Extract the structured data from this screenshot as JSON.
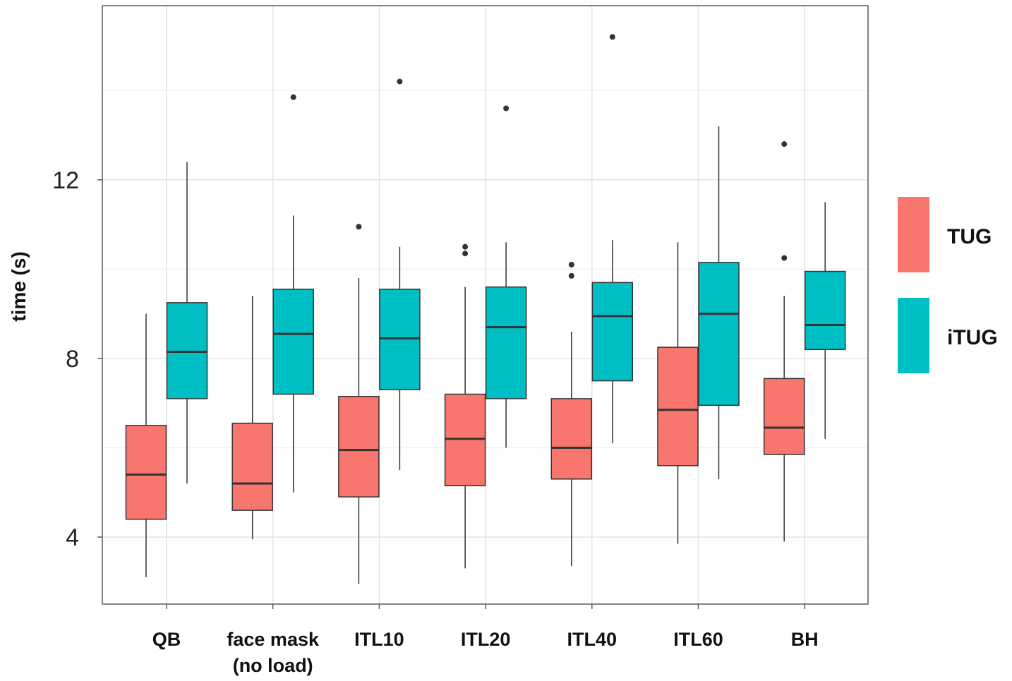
{
  "chart_data": {
    "type": "box",
    "title": "",
    "xlabel": "",
    "ylabel": "time (s)",
    "ylim": [
      2.5,
      15.9
    ],
    "yticks": [
      4,
      8,
      12
    ],
    "grid": true,
    "legend_position": "right",
    "categories": [
      "QB",
      "face mask\n(no load)",
      "ITL10",
      "ITL20",
      "ITL40",
      "ITL60",
      "BH"
    ],
    "series": [
      {
        "name": "TUG",
        "color": "#F8766D",
        "boxes": [
          {
            "whisker_low": 3.1,
            "q1": 4.4,
            "median": 5.4,
            "q3": 6.5,
            "whisker_high": 9.0,
            "outliers": []
          },
          {
            "whisker_low": 3.95,
            "q1": 4.6,
            "median": 5.2,
            "q3": 6.55,
            "whisker_high": 9.4,
            "outliers": []
          },
          {
            "whisker_low": 2.95,
            "q1": 4.9,
            "median": 5.95,
            "q3": 7.15,
            "whisker_high": 9.8,
            "outliers": [
              10.95
            ]
          },
          {
            "whisker_low": 3.3,
            "q1": 5.15,
            "median": 6.2,
            "q3": 7.2,
            "whisker_high": 9.6,
            "outliers": [
              10.35,
              10.5
            ]
          },
          {
            "whisker_low": 3.35,
            "q1": 5.3,
            "median": 6.0,
            "q3": 7.1,
            "whisker_high": 8.6,
            "outliers": [
              9.85,
              10.1
            ]
          },
          {
            "whisker_low": 3.85,
            "q1": 5.6,
            "median": 6.85,
            "q3": 8.25,
            "whisker_high": 10.6,
            "outliers": []
          },
          {
            "whisker_low": 3.9,
            "q1": 5.85,
            "median": 6.45,
            "q3": 7.55,
            "whisker_high": 9.4,
            "outliers": [
              10.25,
              12.8
            ]
          }
        ]
      },
      {
        "name": "iTUG",
        "color": "#00BFC4",
        "boxes": [
          {
            "whisker_low": 5.2,
            "q1": 7.1,
            "median": 8.15,
            "q3": 9.25,
            "whisker_high": 12.4,
            "outliers": []
          },
          {
            "whisker_low": 5.0,
            "q1": 7.2,
            "median": 8.55,
            "q3": 9.55,
            "whisker_high": 11.2,
            "outliers": [
              13.85
            ]
          },
          {
            "whisker_low": 5.5,
            "q1": 7.3,
            "median": 8.45,
            "q3": 9.55,
            "whisker_high": 10.5,
            "outliers": [
              14.2
            ]
          },
          {
            "whisker_low": 6.0,
            "q1": 7.1,
            "median": 8.7,
            "q3": 9.6,
            "whisker_high": 10.6,
            "outliers": [
              13.6
            ]
          },
          {
            "whisker_low": 6.1,
            "q1": 7.5,
            "median": 8.95,
            "q3": 9.7,
            "whisker_high": 10.65,
            "outliers": [
              15.2
            ]
          },
          {
            "whisker_low": 5.3,
            "q1": 6.95,
            "median": 9.0,
            "q3": 10.15,
            "whisker_high": 13.2,
            "outliers": []
          },
          {
            "whisker_low": 6.2,
            "q1": 8.2,
            "median": 8.75,
            "q3": 9.95,
            "whisker_high": 11.5,
            "outliers": []
          }
        ]
      }
    ]
  }
}
